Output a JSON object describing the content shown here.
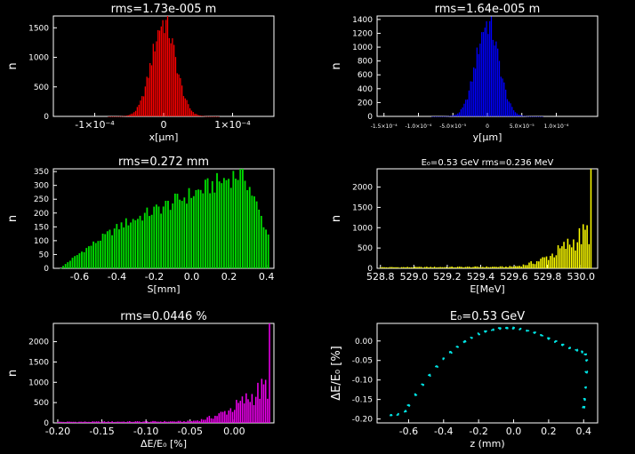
{
  "chart_data": [
    {
      "type": "bar",
      "title": "rms=1.73e-005  m",
      "xlabel": "x[μm]",
      "ylabel": "n",
      "xlim": [
        -0.00016,
        0.00016
      ],
      "ylim": [
        0,
        1700
      ],
      "color": "#ff0000",
      "xticks": [
        {
          "v": -0.0001,
          "label": "-1×10⁻⁴"
        },
        {
          "v": 0,
          "label": "0"
        },
        {
          "v": 0.0001,
          "label": "1×10⁻⁴"
        }
      ],
      "yticks": [
        0,
        500,
        1000,
        1500
      ],
      "shape": {
        "kind": "gauss",
        "center": 0,
        "sigma": 1.73e-05,
        "peak": 1600,
        "range": [
          -8e-05,
          8e-05
        ],
        "n": 70
      }
    },
    {
      "type": "bar",
      "title": "rms=1.64e-005  m",
      "xlabel": "y[μm]",
      "ylabel": "n",
      "xlim": [
        -0.00016,
        0.00016
      ],
      "ylim": [
        0,
        1450
      ],
      "color": "#0000ff",
      "xticks": [
        {
          "v": -0.00015,
          "label": "-1.5×10⁻⁴"
        },
        {
          "v": -0.0001,
          "label": "-1.0×10⁻⁴"
        },
        {
          "v": -5e-05,
          "label": "-5.0×10⁻⁵"
        },
        {
          "v": 0,
          "label": "0"
        },
        {
          "v": 5e-05,
          "label": "5.0×10⁻⁵"
        },
        {
          "v": 0.0001,
          "label": "1.0×10⁻⁴"
        }
      ],
      "yticks": [
        0,
        200,
        400,
        600,
        800,
        1000,
        1200,
        1400
      ],
      "shape": {
        "kind": "gauss",
        "center": 0,
        "sigma": 1.64e-05,
        "peak": 1350,
        "range": [
          -8e-05,
          8e-05
        ],
        "n": 70
      }
    },
    {
      "type": "bar",
      "title": "rms=0.272  mm",
      "xlabel": "S[mm]",
      "ylabel": "n",
      "xlim": [
        -0.74,
        0.44
      ],
      "ylim": [
        0,
        360
      ],
      "color": "#00dd00",
      "xticks": [
        {
          "v": -0.6,
          "label": "-0.6"
        },
        {
          "v": -0.4,
          "label": "-0.4"
        },
        {
          "v": -0.2,
          "label": "-0.2"
        },
        {
          "v": 0,
          "label": "0.0"
        },
        {
          "v": 0.2,
          "label": "0.2"
        },
        {
          "v": 0.4,
          "label": "0.4"
        }
      ],
      "yticks": [
        0,
        50,
        100,
        150,
        200,
        250,
        300,
        350
      ],
      "shape": {
        "kind": "bunch",
        "range": [
          -0.7,
          0.41
        ],
        "n": 90
      }
    },
    {
      "type": "bar",
      "title": "E₀=0.53  GeV  rms=0.236  MeV",
      "xlabel": "E[MeV]",
      "ylabel": "n",
      "xlim": [
        528.78,
        530.1
      ],
      "ylim": [
        0,
        2450
      ],
      "color": "#ffff00",
      "xticks": [
        {
          "v": 528.8,
          "label": "528.8"
        },
        {
          "v": 529.0,
          "label": "529.0"
        },
        {
          "v": 529.2,
          "label": "529.2"
        },
        {
          "v": 529.4,
          "label": "529.4"
        },
        {
          "v": 529.6,
          "label": "529.6"
        },
        {
          "v": 529.8,
          "label": "529.8"
        },
        {
          "v": 530.0,
          "label": "530.0"
        }
      ],
      "yticks": [
        0,
        500,
        1000,
        1500,
        2000
      ],
      "shape": {
        "kind": "spike",
        "range": [
          528.8,
          530.06
        ],
        "n": 110,
        "peak": 2300
      }
    },
    {
      "type": "bar",
      "title": "rms=0.0446  %",
      "xlabel": "ΔE/E₀ [%]",
      "ylabel": "n",
      "xlim": [
        -0.205,
        0.045
      ],
      "ylim": [
        0,
        2450
      ],
      "color": "#ee00ee",
      "xticks": [
        {
          "v": -0.2,
          "label": "-0.20"
        },
        {
          "v": -0.15,
          "label": "-0.15"
        },
        {
          "v": -0.1,
          "label": "-0.10"
        },
        {
          "v": -0.05,
          "label": "-0.05"
        },
        {
          "v": 0,
          "label": "0.00"
        }
      ],
      "yticks": [
        0,
        500,
        1000,
        1500,
        2000
      ],
      "shape": {
        "kind": "spike",
        "range": [
          -0.2,
          0.04
        ],
        "n": 110,
        "peak": 2300
      }
    },
    {
      "type": "scatter",
      "title": "E₀=0.53  GeV",
      "xlabel": "z (mm)",
      "ylabel": "ΔE/E₀ [%]",
      "xlim": [
        -0.78,
        0.48
      ],
      "ylim": [
        -0.21,
        0.045
      ],
      "color": "#00e5e5",
      "xticks": [
        {
          "v": -0.6,
          "label": "-0.6"
        },
        {
          "v": -0.4,
          "label": "-0.4"
        },
        {
          "v": -0.2,
          "label": "-0.2"
        },
        {
          "v": 0,
          "label": "0.0"
        },
        {
          "v": 0.2,
          "label": "0.2"
        },
        {
          "v": 0.4,
          "label": "0.4"
        }
      ],
      "yticks": [
        {
          "v": -0.2,
          "label": "-0.20"
        },
        {
          "v": -0.15,
          "label": "-0.15"
        },
        {
          "v": -0.1,
          "label": "-0.10"
        },
        {
          "v": -0.05,
          "label": "-0.05"
        },
        {
          "v": 0,
          "label": "0.00"
        }
      ],
      "points": [
        [
          -0.7,
          -0.19
        ],
        [
          -0.66,
          -0.188
        ],
        [
          -0.62,
          -0.18
        ],
        [
          -0.6,
          -0.165
        ],
        [
          -0.56,
          -0.138
        ],
        [
          -0.52,
          -0.112
        ],
        [
          -0.48,
          -0.088
        ],
        [
          -0.44,
          -0.066
        ],
        [
          -0.4,
          -0.046
        ],
        [
          -0.36,
          -0.029
        ],
        [
          -0.32,
          -0.014
        ],
        [
          -0.28,
          -0.002
        ],
        [
          -0.24,
          0.009
        ],
        [
          -0.2,
          0.018
        ],
        [
          -0.16,
          0.024
        ],
        [
          -0.12,
          0.029
        ],
        [
          -0.08,
          0.032
        ],
        [
          -0.04,
          0.033
        ],
        [
          0.0,
          0.033
        ],
        [
          0.04,
          0.031
        ],
        [
          0.08,
          0.027
        ],
        [
          0.12,
          0.021
        ],
        [
          0.16,
          0.014
        ],
        [
          0.2,
          0.006
        ],
        [
          0.24,
          -0.002
        ],
        [
          0.28,
          -0.01
        ],
        [
          0.32,
          -0.018
        ],
        [
          0.36,
          -0.024
        ],
        [
          0.39,
          -0.028
        ],
        [
          0.41,
          -0.035
        ],
        [
          0.42,
          -0.05
        ],
        [
          0.415,
          -0.08
        ],
        [
          0.41,
          -0.12
        ],
        [
          0.405,
          -0.15
        ],
        [
          0.4,
          -0.17
        ]
      ]
    }
  ]
}
